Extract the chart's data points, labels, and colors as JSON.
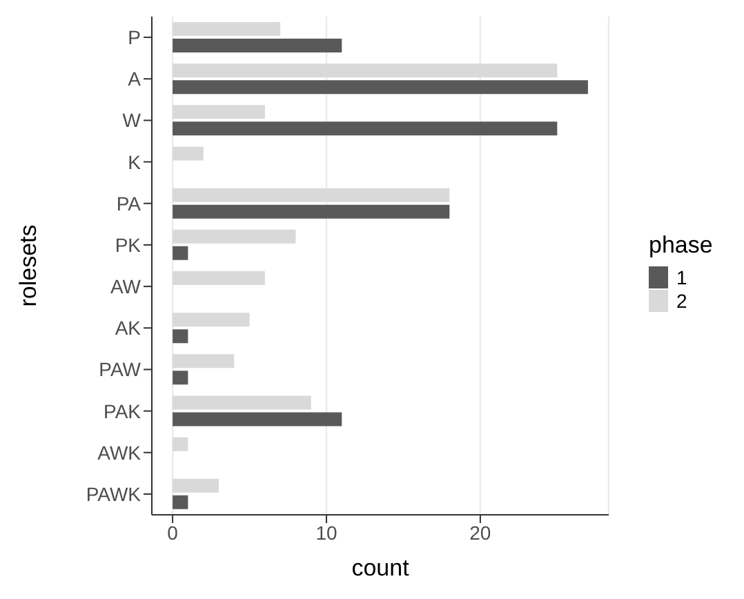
{
  "chart_data": {
    "type": "bar",
    "orientation": "horizontal",
    "xlabel": "count",
    "ylabel": "rolesets",
    "legend_title": "phase",
    "legend": "right",
    "grid": "x",
    "categories": [
      "P",
      "A",
      "W",
      "K",
      "PA",
      "PK",
      "AW",
      "AK",
      "PAW",
      "PAK",
      "AWK",
      "PAWK"
    ],
    "series": [
      {
        "name": "1",
        "color": "#595959",
        "values": [
          11,
          27,
          25,
          0,
          18,
          1,
          0,
          1,
          1,
          11,
          0,
          1
        ]
      },
      {
        "name": "2",
        "color": "#d9d9d9",
        "values": [
          7,
          25,
          6,
          2,
          18,
          8,
          6,
          5,
          4,
          9,
          1,
          3
        ]
      }
    ],
    "xlim": [
      -1.35,
      28.35
    ],
    "xticks": [
      0,
      10,
      20
    ]
  }
}
